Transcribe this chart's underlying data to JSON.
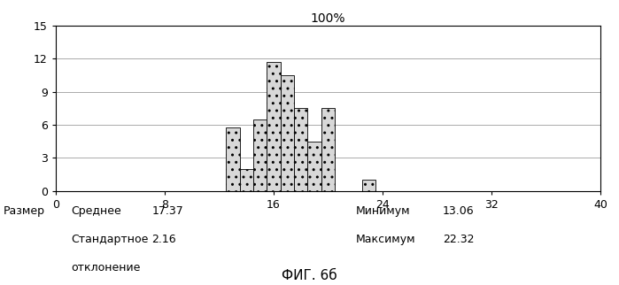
{
  "title": "100%",
  "bar_positions": [
    13,
    14,
    15,
    16,
    17,
    18,
    19,
    20,
    23
  ],
  "bar_heights": [
    5.8,
    2.0,
    6.5,
    11.7,
    10.5,
    7.5,
    4.5,
    7.5,
    1.0
  ],
  "bar_width": 1.0,
  "xlim": [
    0,
    40
  ],
  "ylim": [
    0,
    15
  ],
  "xticks": [
    0,
    8,
    16,
    24,
    32,
    40
  ],
  "yticks": [
    0,
    3,
    6,
    9,
    12,
    15
  ],
  "bar_color": "#d8d8d8",
  "bar_edgecolor": "#000000",
  "bar_hatch": "..",
  "grid_color": "#888888",
  "background_color": "#ffffff",
  "stats_label": "Размер",
  "stats_mean_label": "Среднее",
  "stats_mean_value": "17.37",
  "stats_std_label": "Стандартное",
  "stats_std_value": "2.16",
  "stats_std_label2": "отклонение",
  "stats_min_label": "Минимум",
  "stats_min_value": "13.06",
  "stats_max_label": "Максимум",
  "stats_max_value": "22.32",
  "figure_label": "ФИГ. 6б",
  "fontsize_title": 10,
  "fontsize_stats": 9,
  "fontsize_ticks": 9,
  "fontsize_figure_label": 11
}
